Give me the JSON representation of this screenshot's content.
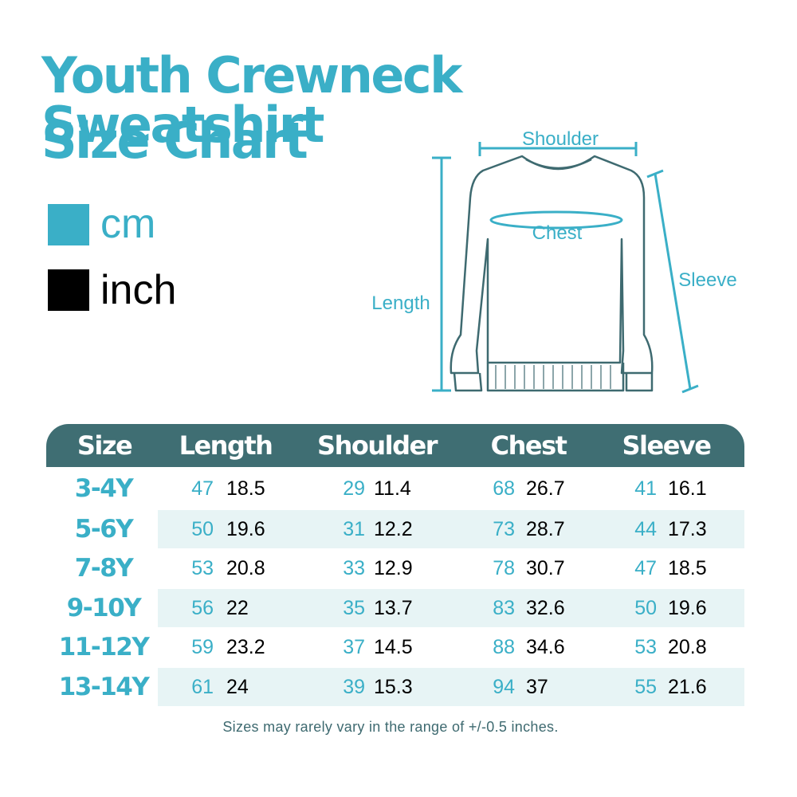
{
  "title": {
    "line1": "Youth Crewneck Sweatshirt",
    "line2": "Size Chart"
  },
  "legend": {
    "cm": {
      "label": "cm",
      "color": "#3aafc7"
    },
    "inch": {
      "label": "inch",
      "color": "#000000"
    }
  },
  "diagram": {
    "shoulder": "Shoulder",
    "chest": "Chest",
    "length": "Length",
    "sleeve": "Sleeve"
  },
  "table": {
    "headers": [
      "Size",
      "Length",
      "Shoulder",
      "Chest",
      "Sleeve"
    ],
    "rows": [
      {
        "size": "3-4Y",
        "length": [
          "47",
          "18.5"
        ],
        "shoulder": [
          "29",
          "11.4"
        ],
        "chest": [
          "68",
          "26.7"
        ],
        "sleeve": [
          "41",
          "16.1"
        ]
      },
      {
        "size": "5-6Y",
        "length": [
          "50",
          "19.6"
        ],
        "shoulder": [
          "31",
          "12.2"
        ],
        "chest": [
          "73",
          "28.7"
        ],
        "sleeve": [
          "44",
          "17.3"
        ]
      },
      {
        "size": "7-8Y",
        "length": [
          "53",
          "20.8"
        ],
        "shoulder": [
          "33",
          "12.9"
        ],
        "chest": [
          "78",
          "30.7"
        ],
        "sleeve": [
          "47",
          "18.5"
        ]
      },
      {
        "size": "9-10Y",
        "length": [
          "56",
          "22"
        ],
        "shoulder": [
          "35",
          "13.7"
        ],
        "chest": [
          "83",
          "32.6"
        ],
        "sleeve": [
          "50",
          "19.6"
        ]
      },
      {
        "size": "11-12Y",
        "length": [
          "59",
          "23.2"
        ],
        "shoulder": [
          "37",
          "14.5"
        ],
        "chest": [
          "88",
          "34.6"
        ],
        "sleeve": [
          "53",
          "20.8"
        ]
      },
      {
        "size": "13-14Y",
        "length": [
          "61",
          "24"
        ],
        "shoulder": [
          "39",
          "15.3"
        ],
        "chest": [
          "94",
          "37"
        ],
        "sleeve": [
          "55",
          "21.6"
        ]
      }
    ]
  },
  "note": "Sizes may rarely vary in the range of +/-0.5 inches.",
  "colors": {
    "accent": "#3aafc7",
    "header": "#3f6e73",
    "stripe": "#e7f4f5",
    "outline": "#3e6a70"
  }
}
